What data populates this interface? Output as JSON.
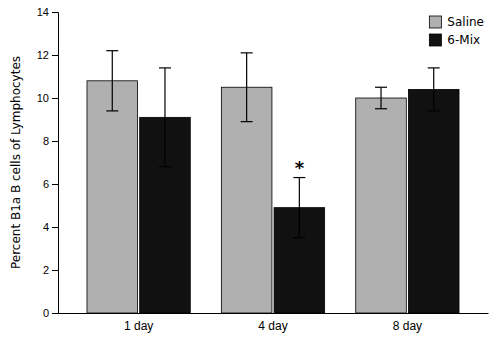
{
  "chart_data": {
    "type": "bar",
    "ylabel": "Percent B1a B cells of Lymphocytes",
    "categories": [
      "1 day",
      "4 day",
      "8 day"
    ],
    "series": [
      {
        "name": "Saline",
        "color": "#b0b0b0",
        "values": [
          10.8,
          10.5,
          10.0
        ],
        "errors": [
          1.4,
          1.6,
          0.5
        ]
      },
      {
        "name": "6-Mix",
        "color": "#111111",
        "values": [
          9.1,
          4.9,
          10.4
        ],
        "errors": [
          2.3,
          1.4,
          1.0
        ]
      }
    ],
    "ylim": [
      0,
      14
    ],
    "yticks": [
      0,
      2,
      4,
      6,
      8,
      10,
      12,
      14
    ],
    "grid": false,
    "legend": "upper right",
    "annotations": [
      {
        "text": "*",
        "category": "4 day",
        "series": "6-Mix"
      }
    ]
  }
}
